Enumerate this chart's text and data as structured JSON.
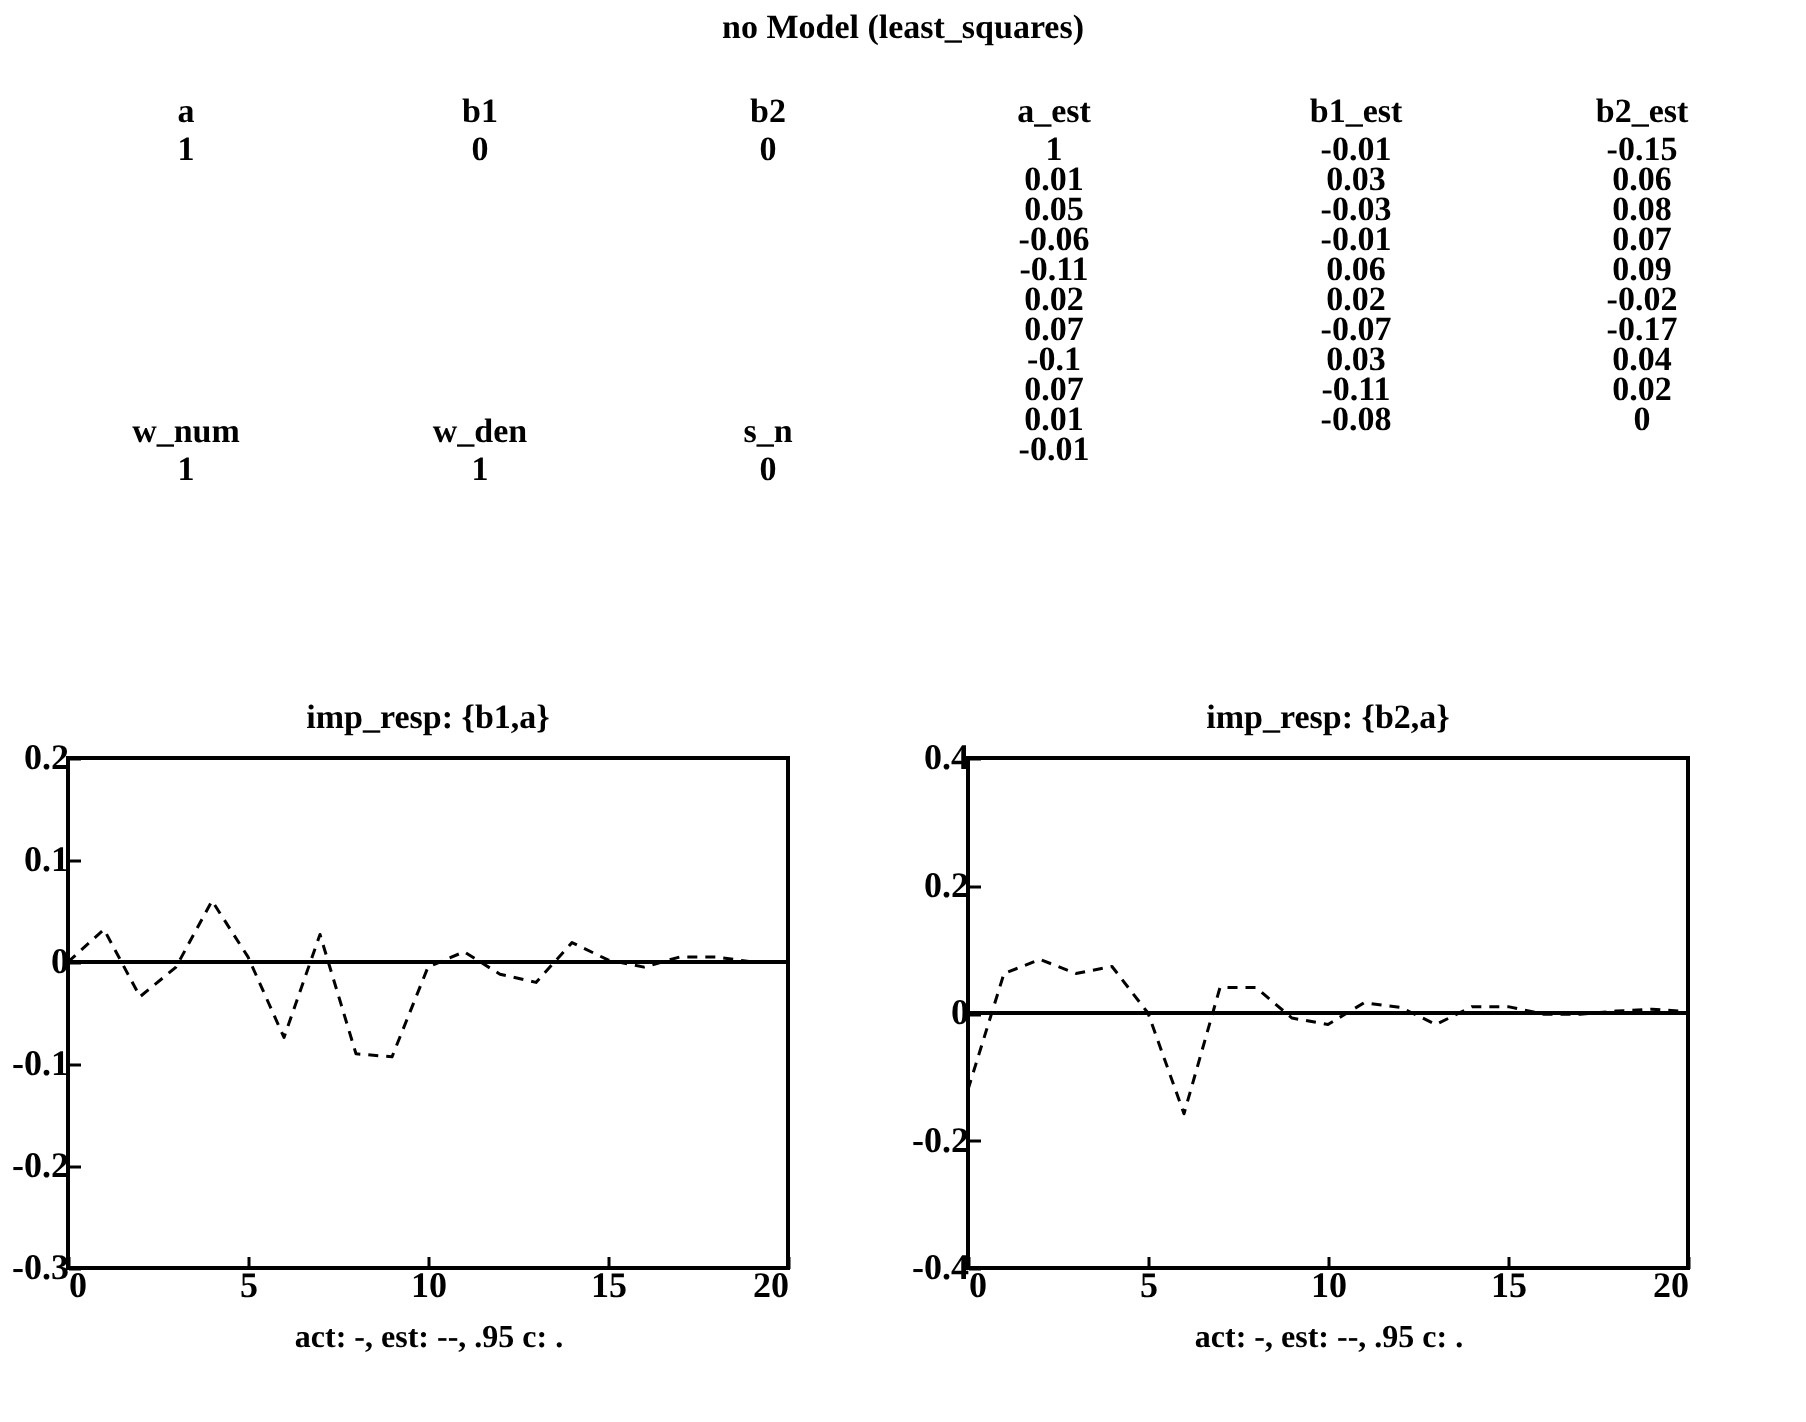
{
  "chart_data": [
    {
      "type": "other",
      "title": "no Model (least_squares)",
      "annotations": [
        "a\n1",
        "b1\n0",
        "b2\n0",
        "w_num\n1",
        "w_den\n1",
        "s_n\n0",
        "a_est\n1\n0.01\n0.05\n-0.06\n-0.11\n0.02\n0.07\n-0.1\n0.07\n0.01\n-0.01",
        "b1_est\n-0.01\n0.03\n-0.03\n-0.01\n0.06\n0.02\n-0.07\n0.03\n-0.11\n-0.08",
        "b2_est\n-0.15\n0.06\n0.08\n0.07\n0.09\n-0.02\n-0.17\n0.04\n0.02\n0"
      ]
    },
    {
      "type": "line",
      "title": "imp_resp: {b1,a}",
      "xlabel": "act: -, est: --, .95 c: .",
      "x": [
        0,
        1,
        2,
        3,
        4,
        5,
        6,
        7,
        8,
        9,
        10,
        11,
        12,
        13,
        14,
        15,
        16,
        17,
        18,
        19,
        20
      ],
      "xlim": [
        0,
        20
      ],
      "xticks": [
        0,
        5,
        10,
        15,
        20
      ],
      "ylim": [
        -0.3,
        0.2
      ],
      "yticks": [
        -0.3,
        -0.2,
        -0.1,
        0,
        0.1,
        0.2
      ],
      "series": [
        {
          "color": "#000000",
          "line_style": "solid",
          "values": [
            0,
            0,
            0,
            0,
            0,
            0,
            0,
            0,
            0,
            0,
            0,
            0,
            0,
            0,
            0,
            0,
            0,
            0,
            0,
            0,
            0
          ]
        },
        {
          "color": "#000000",
          "line_style": "dashed",
          "values": [
            0,
            0.032,
            -0.034,
            -0.005,
            0.06,
            0.005,
            -0.074,
            0.027,
            -0.09,
            -0.093,
            -0.005,
            0.01,
            -0.012,
            -0.02,
            0.019,
            0.002,
            -0.005,
            0.005,
            0.005,
            0,
            0
          ]
        }
      ]
    },
    {
      "type": "line",
      "title": "imp_resp: {b2,a}",
      "xlabel": "act: -, est: --, .95 c: .",
      "x": [
        0,
        1,
        2,
        3,
        4,
        5,
        6,
        7,
        8,
        9,
        10,
        11,
        12,
        13,
        14,
        15,
        16,
        17,
        18,
        19,
        20
      ],
      "xlim": [
        0,
        20
      ],
      "xticks": [
        0,
        5,
        10,
        15,
        20
      ],
      "ylim": [
        -0.4,
        0.4
      ],
      "yticks": [
        -0.4,
        -0.2,
        0,
        0.2,
        0.4
      ],
      "series": [
        {
          "color": "#000000",
          "line_style": "solid",
          "values": [
            0,
            0,
            0,
            0,
            0,
            0,
            0,
            0,
            0,
            0,
            0,
            0,
            0,
            0,
            0,
            0,
            0,
            0,
            0,
            0,
            0
          ]
        },
        {
          "color": "#000000",
          "line_style": "dashed",
          "values": [
            -0.12,
            0.062,
            0.084,
            0.062,
            0.073,
            0,
            -0.158,
            0.04,
            0.04,
            -0.008,
            -0.018,
            0.016,
            0.009,
            -0.018,
            0.01,
            0.01,
            -0.002,
            -0.002,
            0.003,
            0.006,
            0.002
          ]
        }
      ]
    }
  ]
}
